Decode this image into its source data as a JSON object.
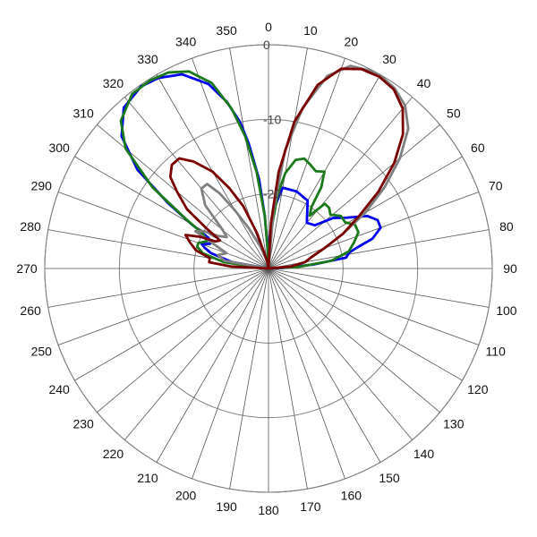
{
  "chart_data": {
    "type": "polar",
    "grid": true,
    "angle_direction": "clockwise",
    "zero_position": "top",
    "radial_range": [
      -30,
      0
    ],
    "radial_ticks": [
      0,
      -10,
      -20
    ],
    "radial_tick_labels": [
      "0",
      "-10",
      "-20"
    ],
    "angle_ticks": [
      0,
      10,
      20,
      30,
      40,
      50,
      60,
      70,
      80,
      90,
      100,
      110,
      120,
      130,
      140,
      150,
      160,
      170,
      180,
      190,
      200,
      210,
      220,
      230,
      240,
      250,
      260,
      270,
      280,
      290,
      300,
      310,
      320,
      330,
      340,
      350
    ],
    "angle_tick_labels": [
      "0",
      "10",
      "20",
      "30",
      "40",
      "50",
      "60",
      "70",
      "80",
      "90",
      "100",
      "110",
      "120",
      "130",
      "140",
      "150",
      "160",
      "170",
      "180",
      "190",
      "200",
      "210",
      "220",
      "230",
      "240",
      "250",
      "260",
      "270",
      "280",
      "290",
      "300",
      "310",
      "320",
      "330",
      "340",
      "350"
    ],
    "series": [
      {
        "color": "#0000ee",
        "points": [
          [
            270,
            -30
          ],
          [
            280,
            -25
          ],
          [
            285,
            -22
          ],
          [
            288,
            -21
          ],
          [
            290,
            -20.5
          ],
          [
            293,
            -21.5
          ],
          [
            297,
            -21
          ],
          [
            300,
            -18
          ],
          [
            303,
            -14
          ],
          [
            307,
            -8
          ],
          [
            312,
            -3.5
          ],
          [
            318,
            -1
          ],
          [
            325,
            -0.2
          ],
          [
            330,
            -0.5
          ],
          [
            336,
            -1.5
          ],
          [
            342,
            -4
          ],
          [
            346,
            -7
          ],
          [
            349,
            -10
          ],
          [
            351,
            -13
          ],
          [
            354,
            -18
          ],
          [
            356,
            -23
          ],
          [
            358,
            -28
          ],
          [
            0,
            -30
          ],
          [
            2,
            -26
          ],
          [
            5,
            -22
          ],
          [
            10,
            -19
          ],
          [
            20,
            -19
          ],
          [
            30,
            -19.5
          ],
          [
            40,
            -22
          ],
          [
            47,
            -21.5
          ],
          [
            52,
            -19
          ],
          [
            57,
            -17.5
          ],
          [
            62,
            -15
          ],
          [
            66,
            -14
          ],
          [
            70,
            -14
          ],
          [
            74,
            -15.5
          ],
          [
            77,
            -18
          ],
          [
            79,
            -19
          ],
          [
            82,
            -19.5
          ],
          [
            85,
            -24
          ],
          [
            88,
            -28
          ],
          [
            90,
            -30
          ]
        ]
      },
      {
        "color": "#1a7a1a",
        "points": [
          [
            270,
            -30
          ],
          [
            278,
            -24
          ],
          [
            283,
            -21
          ],
          [
            287,
            -20
          ],
          [
            290,
            -20
          ],
          [
            294,
            -21
          ],
          [
            298,
            -20
          ],
          [
            301,
            -17
          ],
          [
            305,
            -11
          ],
          [
            310,
            -5
          ],
          [
            315,
            -2
          ],
          [
            322,
            -0.3
          ],
          [
            328,
            -0.2
          ],
          [
            333,
            -0.5
          ],
          [
            338,
            -1.5
          ],
          [
            343,
            -4
          ],
          [
            347,
            -8
          ],
          [
            350,
            -12
          ],
          [
            353,
            -17
          ],
          [
            356,
            -23
          ],
          [
            358,
            -28
          ],
          [
            0,
            -30
          ],
          [
            2,
            -27
          ],
          [
            5,
            -24
          ],
          [
            7,
            -20
          ],
          [
            10,
            -17
          ],
          [
            14,
            -15
          ],
          [
            18,
            -14.5
          ],
          [
            22,
            -15
          ],
          [
            26,
            -15.5
          ],
          [
            30,
            -15
          ],
          [
            33,
            -17
          ],
          [
            35,
            -20
          ],
          [
            38,
            -21
          ],
          [
            41,
            -18.5
          ],
          [
            45,
            -18.5
          ],
          [
            49,
            -19
          ],
          [
            54,
            -18
          ],
          [
            59,
            -18
          ],
          [
            63,
            -17
          ],
          [
            68,
            -17
          ],
          [
            73,
            -18
          ],
          [
            78,
            -19
          ],
          [
            83,
            -21.5
          ],
          [
            87,
            -26
          ],
          [
            90,
            -30
          ]
        ]
      },
      {
        "color": "#808080",
        "points": [
          [
            270,
            -30
          ],
          [
            280,
            -24
          ],
          [
            285,
            -23
          ],
          [
            290,
            -24
          ],
          [
            294,
            -22
          ],
          [
            297,
            -19
          ],
          [
            300,
            -20
          ],
          [
            303,
            -22
          ],
          [
            307,
            -23
          ],
          [
            310,
            -22
          ],
          [
            315,
            -18
          ],
          [
            320,
            -16
          ],
          [
            324,
            -16
          ],
          [
            327,
            -18
          ],
          [
            330,
            -21
          ],
          [
            334,
            -24
          ],
          [
            340,
            -27
          ],
          [
            350,
            -29
          ],
          [
            0,
            -30
          ],
          [
            5,
            -22
          ],
          [
            8,
            -14
          ],
          [
            12,
            -8
          ],
          [
            17,
            -3
          ],
          [
            22,
            -0.7
          ],
          [
            27,
            -0.2
          ],
          [
            30,
            -0.1
          ],
          [
            35,
            -0.5
          ],
          [
            40,
            -1.5
          ],
          [
            45,
            -3.5
          ],
          [
            50,
            -7
          ],
          [
            55,
            -11
          ],
          [
            60,
            -15
          ],
          [
            65,
            -19
          ],
          [
            70,
            -22
          ],
          [
            75,
            -24
          ],
          [
            80,
            -25
          ],
          [
            85,
            -27
          ],
          [
            90,
            -30
          ]
        ]
      },
      {
        "color": "#7a0000",
        "points": [
          [
            270,
            -30
          ],
          [
            273,
            -25
          ],
          [
            276,
            -22
          ],
          [
            280,
            -22
          ],
          [
            284,
            -20
          ],
          [
            288,
            -19
          ],
          [
            292,
            -18
          ],
          [
            295,
            -20
          ],
          [
            297,
            -22
          ],
          [
            300,
            -22.5
          ],
          [
            303,
            -20
          ],
          [
            306,
            -16.5
          ],
          [
            310,
            -14
          ],
          [
            313,
            -12
          ],
          [
            317,
            -11
          ],
          [
            321,
            -11
          ],
          [
            325,
            -12.5
          ],
          [
            330,
            -15
          ],
          [
            334,
            -18
          ],
          [
            338,
            -21
          ],
          [
            342,
            -25
          ],
          [
            350,
            -29
          ],
          [
            0,
            -30
          ],
          [
            3,
            -24
          ],
          [
            6,
            -17
          ],
          [
            10,
            -10
          ],
          [
            15,
            -4.5
          ],
          [
            20,
            -1.5
          ],
          [
            25,
            -0.5
          ],
          [
            30,
            -0.3
          ],
          [
            35,
            -0.7
          ],
          [
            40,
            -2
          ],
          [
            45,
            -4.5
          ],
          [
            50,
            -8
          ],
          [
            55,
            -12
          ],
          [
            60,
            -16
          ],
          [
            65,
            -19
          ],
          [
            70,
            -22
          ],
          [
            75,
            -24
          ],
          [
            80,
            -25
          ],
          [
            85,
            -27
          ],
          [
            90,
            -30
          ]
        ]
      }
    ]
  }
}
